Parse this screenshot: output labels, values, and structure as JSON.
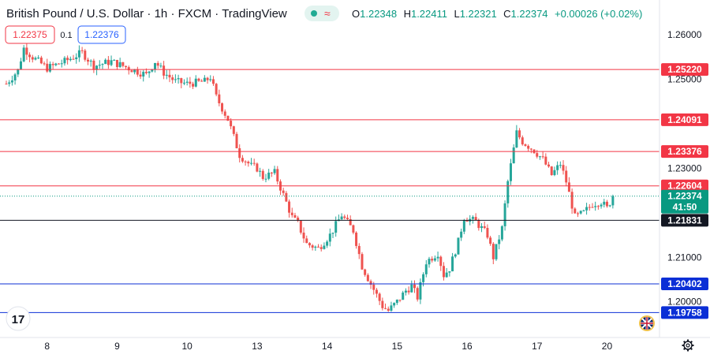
{
  "header": {
    "symbol": "British Pound / U.S. Dollar",
    "interval": "1h",
    "exchange": "FXCM",
    "source": "TradingView",
    "wave_glyph": "≈",
    "ohlc": {
      "open_label": "O",
      "open": "1.22348",
      "high_label": "H",
      "high": "1.22411",
      "low_label": "L",
      "low": "1.22321",
      "close_label": "C",
      "close": "1.22374",
      "change": "+0.00026 (+0.02%)"
    }
  },
  "order_panel": {
    "sell_price": "1.22375",
    "spread": "0.1",
    "buy_price": "1.22376"
  },
  "logo": {
    "text": "17",
    "icon": "tradingview-logo-icon"
  },
  "flag_icon": "uk-flag-icon",
  "settings_icon": "gear-icon",
  "colors": {
    "up": "#26a69a",
    "down": "#ef5350",
    "resistance": "#f23645",
    "support_black": "#131722",
    "support_blue": "#0b2fd6",
    "price": "#089981"
  },
  "chart_data": {
    "type": "candlestick",
    "ylim": [
      1.1925,
      1.2625
    ],
    "y_ticks": [
      1.2,
      1.21,
      1.23,
      1.25,
      1.26
    ],
    "y_tick_labels": [
      "1.20000",
      "1.21000",
      "1.23000",
      "1.25000",
      "1.26000"
    ],
    "x_ticks": [
      {
        "label": "8",
        "t": 14
      },
      {
        "label": "9",
        "t": 38
      },
      {
        "label": "10",
        "t": 62
      },
      {
        "label": "13",
        "t": 86
      },
      {
        "label": "14",
        "t": 110
      },
      {
        "label": "15",
        "t": 134
      },
      {
        "label": "16",
        "t": 158
      },
      {
        "label": "17",
        "t": 182
      },
      {
        "label": "20",
        "t": 206
      }
    ],
    "horizontal_levels": [
      {
        "price": 1.2522,
        "label": "1.25220",
        "kind": "resistance"
      },
      {
        "price": 1.24091,
        "label": "1.24091",
        "kind": "resistance"
      },
      {
        "price": 1.23376,
        "label": "1.23376",
        "kind": "resistance"
      },
      {
        "price": 1.22604,
        "label": "1.22604",
        "kind": "resistance"
      },
      {
        "price": 1.21831,
        "label": "1.21831",
        "kind": "support_black"
      },
      {
        "price": 1.20402,
        "label": "1.20402",
        "kind": "support_blue"
      },
      {
        "price": 1.19758,
        "label": "1.19758",
        "kind": "support_blue"
      }
    ],
    "current_price": {
      "price": 1.22374,
      "label": "1.22374",
      "countdown": "41:50"
    },
    "waypoints": [
      [
        0,
        1.249
      ],
      [
        4,
        1.252
      ],
      [
        6,
        1.257
      ],
      [
        9,
        1.255
      ],
      [
        14,
        1.2525
      ],
      [
        20,
        1.254
      ],
      [
        26,
        1.256
      ],
      [
        30,
        1.253
      ],
      [
        36,
        1.254
      ],
      [
        44,
        1.252
      ],
      [
        48,
        1.251
      ],
      [
        51,
        1.254
      ],
      [
        54,
        1.2515
      ],
      [
        58,
        1.2495
      ],
      [
        62,
        1.249
      ],
      [
        68,
        1.2495
      ],
      [
        70,
        1.2505
      ],
      [
        72,
        1.246
      ],
      [
        76,
        1.241
      ],
      [
        80,
        1.233
      ],
      [
        84,
        1.2305
      ],
      [
        86,
        1.23
      ],
      [
        88,
        1.228
      ],
      [
        92,
        1.229
      ],
      [
        95,
        1.224
      ],
      [
        98,
        1.219
      ],
      [
        100,
        1.2175
      ],
      [
        103,
        1.213
      ],
      [
        107,
        1.212
      ],
      [
        111,
        1.215
      ],
      [
        115,
        1.2195
      ],
      [
        119,
        1.216
      ],
      [
        122,
        1.208
      ],
      [
        125,
        1.204
      ],
      [
        129,
        1.199
      ],
      [
        131,
        1.198
      ],
      [
        134,
        1.2
      ],
      [
        137,
        1.2025
      ],
      [
        139,
        1.2035
      ],
      [
        141,
        1.201
      ],
      [
        144,
        1.209
      ],
      [
        148,
        1.211
      ],
      [
        150,
        1.206
      ],
      [
        152,
        1.2075
      ],
      [
        155,
        1.2135
      ],
      [
        157,
        1.219
      ],
      [
        161,
        1.218
      ],
      [
        165,
        1.215
      ],
      [
        167,
        1.21
      ],
      [
        170,
        1.2165
      ],
      [
        172,
        1.227
      ],
      [
        175,
        1.238
      ],
      [
        177,
        1.236
      ],
      [
        181,
        1.234
      ],
      [
        184,
        1.232
      ],
      [
        187,
        1.2285
      ],
      [
        190,
        1.231
      ],
      [
        192,
        1.227
      ],
      [
        195,
        1.219
      ],
      [
        198,
        1.22
      ],
      [
        201,
        1.222
      ],
      [
        204,
        1.2225
      ],
      [
        206,
        1.221
      ],
      [
        208,
        1.2237
      ]
    ]
  }
}
